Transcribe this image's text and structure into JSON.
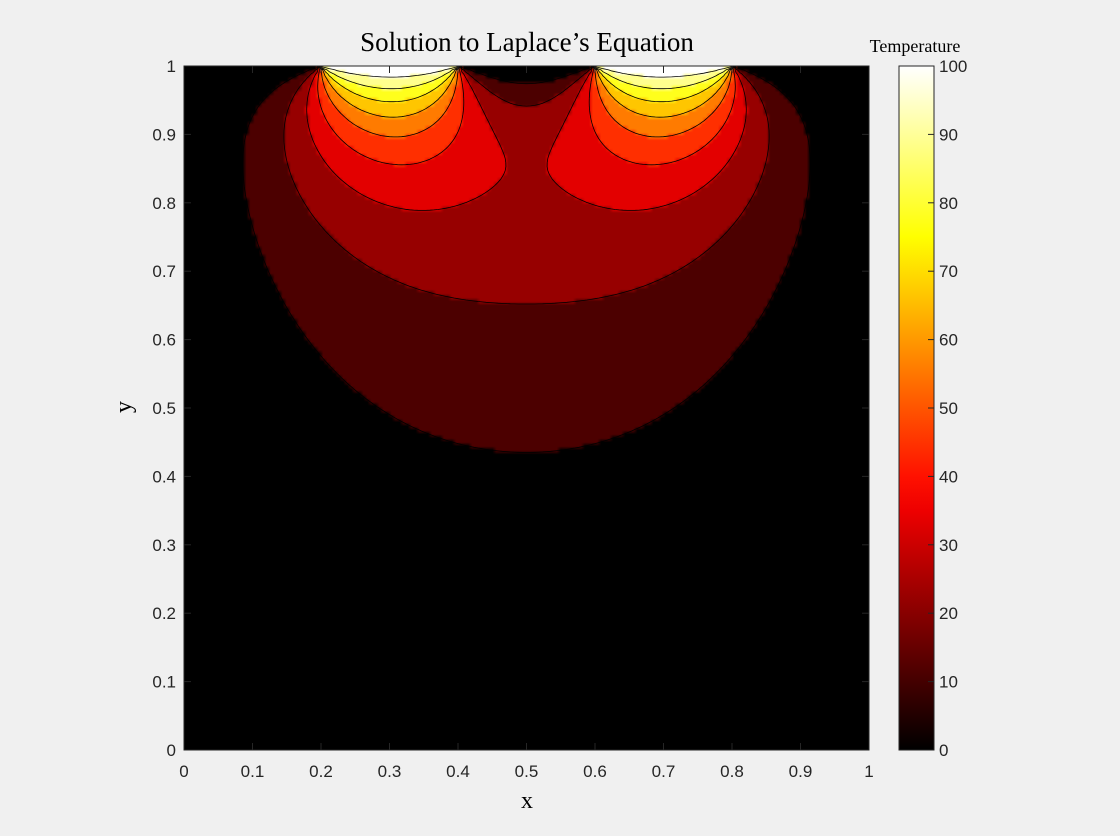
{
  "chart_data": {
    "type": "heatmap",
    "subtype": "filled-contour",
    "title": "Solution to Laplace’s Equation",
    "xlabel": "x",
    "ylabel": "y",
    "xlim": [
      0,
      1
    ],
    "ylim": [
      0,
      1
    ],
    "xticks": [
      0,
      0.1,
      0.2,
      0.3,
      0.4,
      0.5,
      0.6,
      0.7,
      0.8,
      0.9,
      1
    ],
    "xtick_labels": [
      "0",
      "0.1",
      "0.2",
      "0.3",
      "0.4",
      "0.5",
      "0.6",
      "0.7",
      "0.8",
      "0.9",
      "1"
    ],
    "yticks": [
      0,
      0.1,
      0.2,
      0.3,
      0.4,
      0.5,
      0.6,
      0.7,
      0.8,
      0.9,
      1
    ],
    "ytick_labels": [
      "0",
      "0.1",
      "0.2",
      "0.3",
      "0.4",
      "0.5",
      "0.6",
      "0.7",
      "0.8",
      "0.9",
      "1"
    ],
    "colorbar": {
      "label": "Temperature",
      "range": [
        0,
        100
      ],
      "ticks": [
        0,
        10,
        20,
        30,
        40,
        50,
        60,
        70,
        80,
        90,
        100
      ],
      "tick_labels": [
        "0",
        "10",
        "20",
        "30",
        "40",
        "50",
        "60",
        "70",
        "80",
        "90",
        "100"
      ],
      "colormap": "hot",
      "placement": "right"
    },
    "boundary_conditions": [
      {
        "edge": "top",
        "x_range": [
          0.2,
          0.4
        ],
        "value": 100
      },
      {
        "edge": "top",
        "x_range": [
          0.6,
          0.8
        ],
        "value": 100
      }
    ],
    "contour_levels": [
      0,
      10,
      20,
      30,
      40,
      50,
      60,
      70,
      80,
      90,
      100
    ],
    "grid": false,
    "colors": {
      "figure_background": "#f0f0f0",
      "contour_line": "#000000",
      "axis_text": "#262626"
    }
  }
}
